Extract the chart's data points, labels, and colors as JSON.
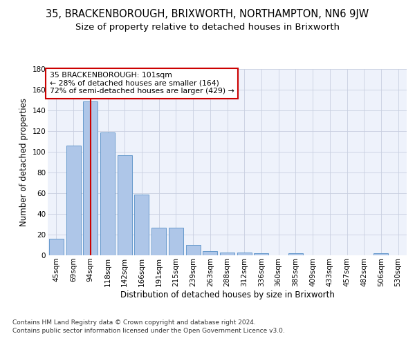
{
  "title": "35, BRACKENBOROUGH, BRIXWORTH, NORTHAMPTON, NN6 9JW",
  "subtitle": "Size of property relative to detached houses in Brixworth",
  "xlabel": "Distribution of detached houses by size in Brixworth",
  "ylabel": "Number of detached properties",
  "categories": [
    "45sqm",
    "69sqm",
    "94sqm",
    "118sqm",
    "142sqm",
    "166sqm",
    "191sqm",
    "215sqm",
    "239sqm",
    "263sqm",
    "288sqm",
    "312sqm",
    "336sqm",
    "360sqm",
    "385sqm",
    "409sqm",
    "433sqm",
    "457sqm",
    "482sqm",
    "506sqm",
    "530sqm"
  ],
  "values": [
    16,
    106,
    149,
    119,
    97,
    59,
    27,
    27,
    10,
    4,
    3,
    3,
    2,
    0,
    2,
    0,
    0,
    0,
    0,
    2,
    0
  ],
  "bar_color": "#aec6e8",
  "bar_edge_color": "#6699cc",
  "vline_x": 2,
  "vline_color": "#cc0000",
  "ylim": [
    0,
    180
  ],
  "yticks": [
    0,
    20,
    40,
    60,
    80,
    100,
    120,
    140,
    160,
    180
  ],
  "annotation_text": "35 BRACKENBOROUGH: 101sqm\n← 28% of detached houses are smaller (164)\n72% of semi-detached houses are larger (429) →",
  "annotation_box_color": "#ffffff",
  "annotation_box_edge": "#cc0000",
  "footer_line1": "Contains HM Land Registry data © Crown copyright and database right 2024.",
  "footer_line2": "Contains public sector information licensed under the Open Government Licence v3.0.",
  "background_color": "#eef2fb",
  "grid_color": "#c8cfe0",
  "title_fontsize": 10.5,
  "subtitle_fontsize": 9.5,
  "axis_label_fontsize": 8.5,
  "tick_fontsize": 7.5,
  "footer_fontsize": 6.5
}
